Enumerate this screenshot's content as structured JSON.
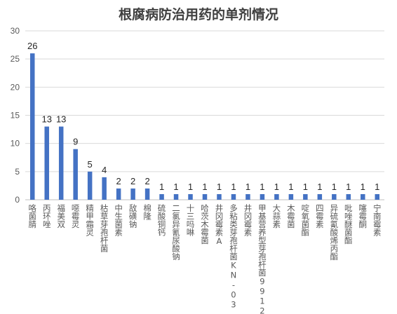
{
  "chart_data": {
    "type": "bar",
    "title": "根腐病防治用药的单剂情况",
    "xlabel": "",
    "ylabel": "",
    "ylim": [
      0,
      30
    ],
    "yticks": [
      0,
      5,
      10,
      15,
      20,
      25,
      30
    ],
    "grid": true,
    "legend": "none",
    "bar_color": "#4472c4",
    "categories": [
      "咯菌腈",
      "丙环唑",
      "福美双",
      "噁霉灵",
      "精甲霜灵",
      "枯草芽孢杆菌",
      "中生菌素",
      "敌磺钠",
      "棉隆",
      "硫酸铜钙",
      "二氯异氰尿酸钠",
      "十三吗啉",
      "哈茨木霉菌",
      "井冈霉素A",
      "多粘类芽孢杆菌KN-03",
      "井冈霉素",
      "甲基营养型芽孢杆菌9912",
      "大蒜素",
      "木霉菌",
      "啶氧菌酯",
      "四霉素",
      "异硫氰酸烯丙酯",
      "吡唑醚菌酯",
      "噻霉酮",
      "宁南霉素"
    ],
    "values": [
      26,
      13,
      13,
      9,
      5,
      4,
      2,
      2,
      2,
      1,
      1,
      1,
      1,
      1,
      1,
      1,
      1,
      1,
      1,
      1,
      1,
      1,
      1,
      1,
      1
    ]
  }
}
